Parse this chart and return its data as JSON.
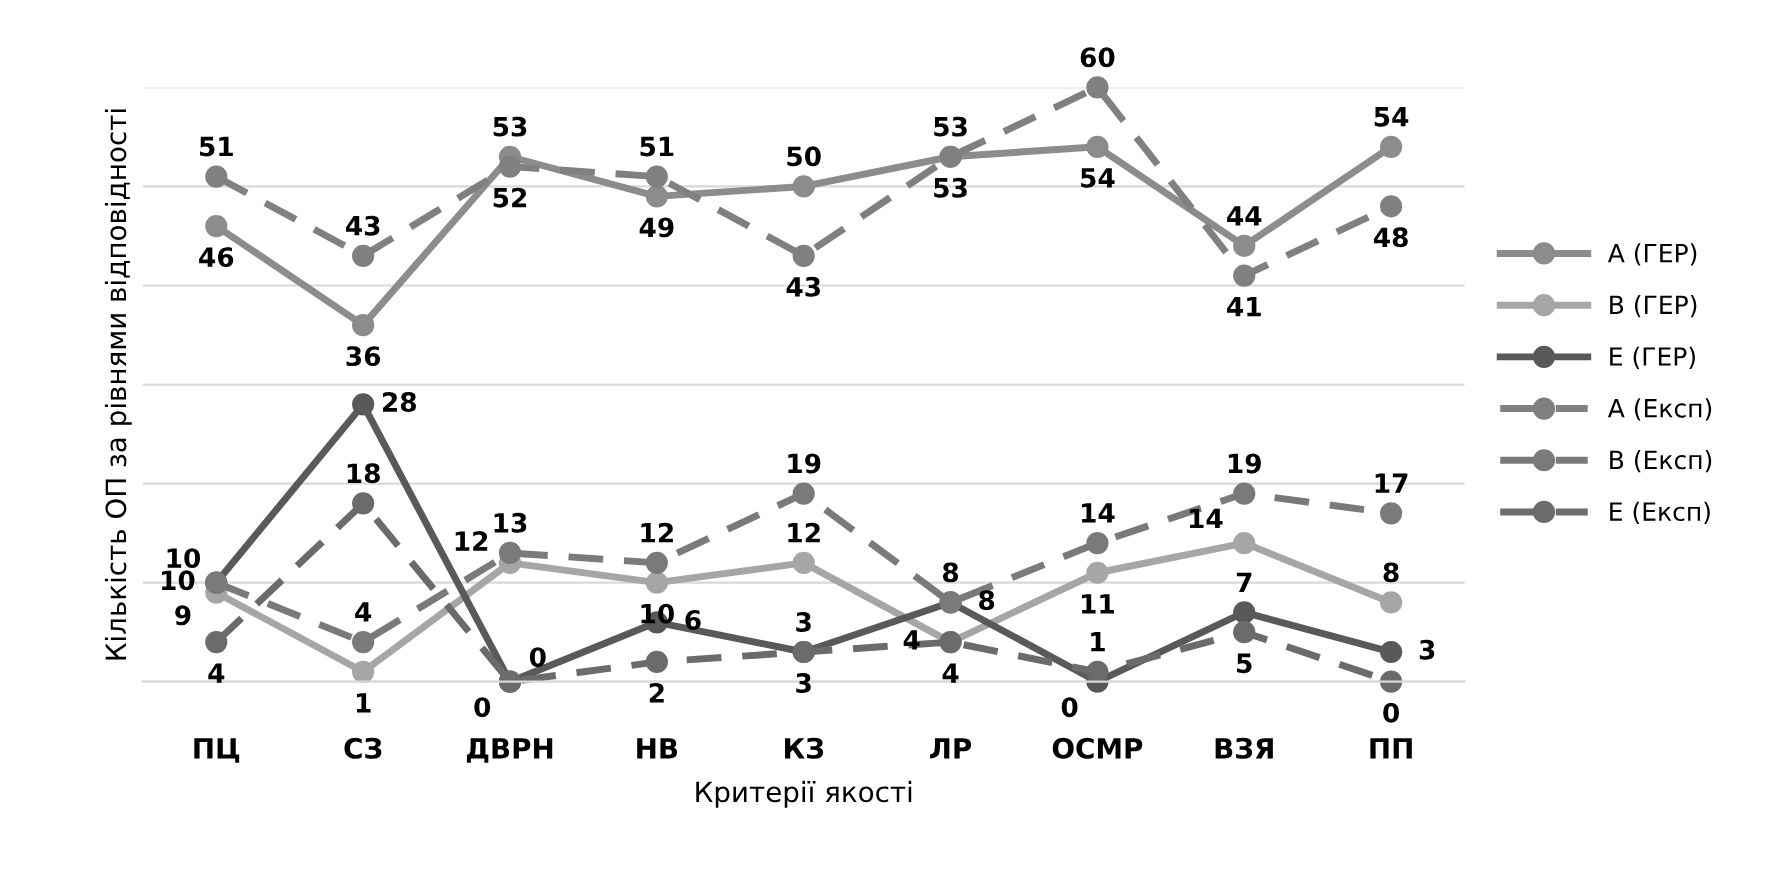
{
  "chart_data": {
    "type": "line",
    "xlabel": "Критерії якості",
    "ylabel": "Кількість ОП за рівнями відповідності",
    "categories": [
      "ПЦ",
      "СЗ",
      "ДВРН",
      "НВ",
      "КЗ",
      "ЛР",
      "ОСМР",
      "ВЗЯ",
      "ПП"
    ],
    "series": [
      {
        "name": "А (ГЕР)",
        "color": "#8c8c8c",
        "line_style": "solid",
        "values": [
          46,
          36,
          53,
          49,
          50,
          53,
          54,
          44,
          54
        ]
      },
      {
        "name": "В (ГЕР)",
        "color": "#a6a6a6",
        "line_style": "solid",
        "values": [
          9,
          1,
          12,
          10,
          12,
          4,
          11,
          14,
          8
        ]
      },
      {
        "name": "Е (ГЕР)",
        "color": "#595959",
        "line_style": "solid",
        "values": [
          10,
          28,
          0,
          6,
          3,
          8,
          0,
          7,
          3
        ]
      },
      {
        "name": "А (Експ)",
        "color": "#808080",
        "line_style": "dashed",
        "values": [
          51,
          43,
          52,
          51,
          43,
          53,
          60,
          41,
          48
        ]
      },
      {
        "name": "В (Експ)",
        "color": "#7a7a7a",
        "line_style": "dashed",
        "values": [
          10,
          4,
          13,
          12,
          19,
          8,
          14,
          19,
          17
        ]
      },
      {
        "name": "Е (Експ)",
        "color": "#6b6b6b",
        "line_style": "dashed",
        "values": [
          4,
          18,
          0,
          2,
          3,
          4,
          1,
          5,
          0
        ]
      }
    ],
    "ylim": [
      0,
      60
    ],
    "yticks": [
      {
        "value": 0,
        "label": null
      },
      {
        "value": 10,
        "label": null
      },
      {
        "value": 20,
        "label": null
      },
      {
        "value": 30,
        "label": null
      },
      {
        "value": 40,
        "label": null
      },
      {
        "value": 50,
        "label": null
      },
      {
        "value": 60,
        "label": null
      }
    ],
    "tick_labels": "x",
    "grid": "y",
    "legend": "right",
    "marker": "circle",
    "data_labels": true
  }
}
